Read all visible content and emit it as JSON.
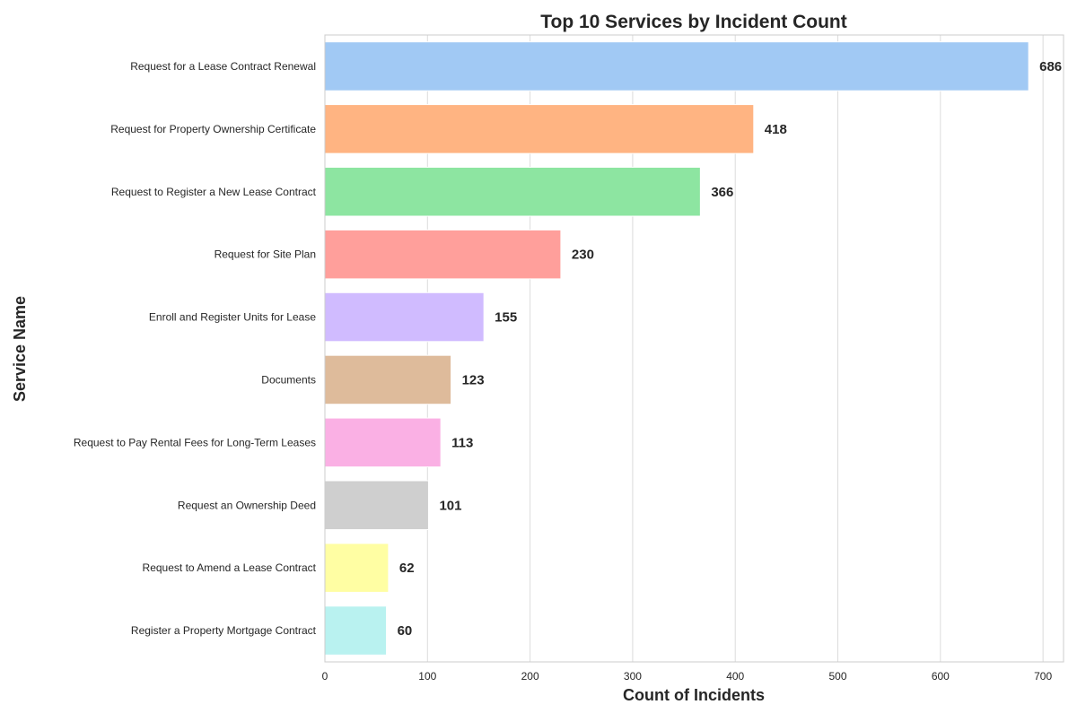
{
  "chart_data": {
    "type": "bar",
    "orientation": "horizontal",
    "title": "Top 10 Services by Incident Count",
    "xlabel": "Count of Incidents",
    "ylabel": "Service Name",
    "xlim": [
      0,
      720
    ],
    "xticks": [
      0,
      100,
      200,
      300,
      400,
      500,
      600,
      700
    ],
    "grid": true,
    "categories": [
      "Request for a Lease Contract Renewal",
      "Request for Property Ownership Certificate",
      "Request to Register a New Lease Contract",
      "Request for Site Plan",
      "Enroll and Register Units for Lease",
      "Documents",
      "Request to Pay Rental Fees for Long-Term Leases",
      "Request an Ownership Deed",
      "Request to Amend a Lease Contract",
      "Register a Property Mortgage Contract"
    ],
    "values": [
      686,
      418,
      366,
      230,
      155,
      123,
      113,
      101,
      62,
      60
    ],
    "colors": [
      "#a1c9f4",
      "#ffb482",
      "#8de5a1",
      "#ff9f9b",
      "#d0bbff",
      "#debb9b",
      "#fab0e4",
      "#cfcfcf",
      "#fffea3",
      "#b9f2f0"
    ]
  }
}
